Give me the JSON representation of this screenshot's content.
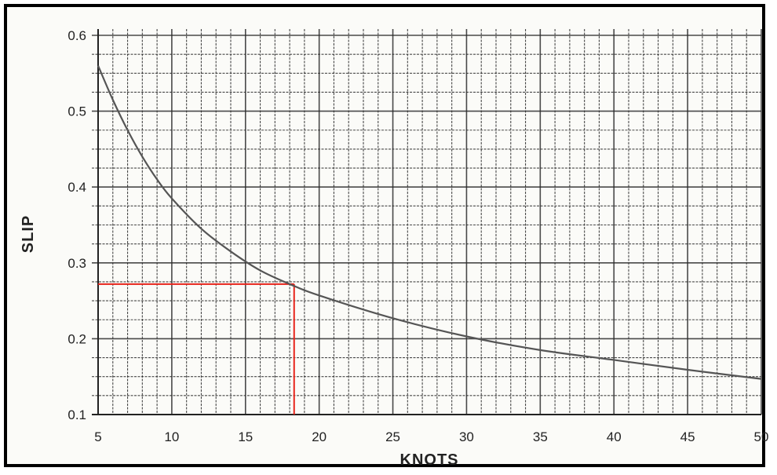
{
  "chart_data": {
    "type": "line",
    "title": "",
    "xlabel": "KNOTS",
    "ylabel": "SLIP",
    "xlim": [
      5,
      50
    ],
    "ylim": [
      0.1,
      0.6
    ],
    "grid": true,
    "x_ticks": [
      5,
      10,
      15,
      20,
      25,
      30,
      35,
      40,
      45,
      50
    ],
    "y_ticks": [
      0.1,
      0.2,
      0.3,
      0.4,
      0.5,
      0.6
    ],
    "x_tick_labels": [
      "5",
      "10",
      "15",
      "20",
      "25",
      "30",
      "35",
      "40",
      "45",
      "50"
    ],
    "y_tick_labels": [
      "0.1",
      "0.2",
      "0.3",
      "0.4",
      "0.5",
      "0.6"
    ],
    "series": [
      {
        "color": "#555555",
        "x": [
          5,
          6,
          7,
          8,
          9,
          10,
          12,
          14,
          16,
          18,
          20,
          25,
          30,
          35,
          40,
          45,
          50
        ],
        "y": [
          0.56,
          0.515,
          0.475,
          0.44,
          0.41,
          0.385,
          0.345,
          0.315,
          0.29,
          0.272,
          0.257,
          0.227,
          0.203,
          0.185,
          0.172,
          0.159,
          0.147
        ]
      }
    ],
    "reference_lines": {
      "color": "#e8231a",
      "x": 18.3,
      "y": 0.272
    }
  }
}
